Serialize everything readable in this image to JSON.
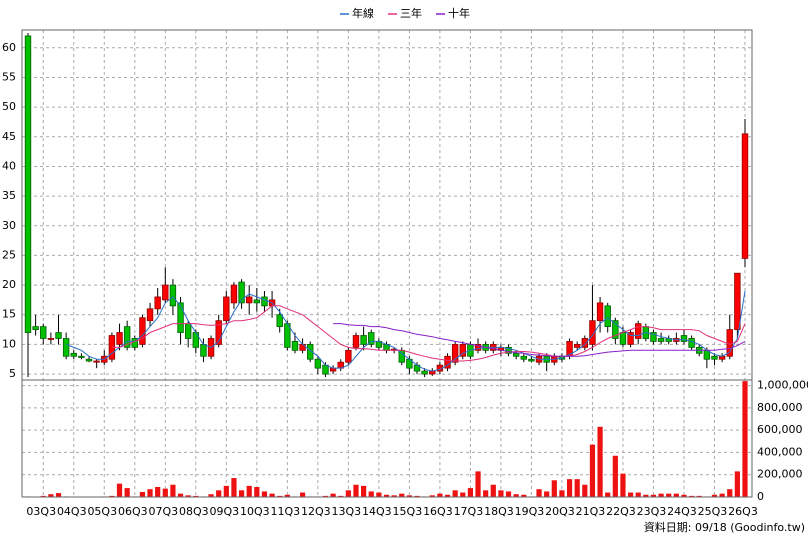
{
  "chart_data": {
    "type": "candlestick",
    "legend": "top",
    "grid": true,
    "up_color": "#ff0000",
    "down_color": "#00c000",
    "volume_color": "#ee1111",
    "note": "資料日期: 09/18 (Goodinfo.tw)",
    "categories": [
      null,
      null,
      "03Q3",
      null,
      null,
      null,
      "04Q3",
      null,
      null,
      null,
      "05Q3",
      null,
      null,
      null,
      "06Q3",
      null,
      null,
      null,
      "07Q3",
      null,
      null,
      null,
      "08Q3",
      null,
      null,
      null,
      "09Q3",
      null,
      null,
      null,
      "10Q3",
      null,
      null,
      null,
      "11Q3",
      null,
      null,
      null,
      "12Q3",
      null,
      null,
      null,
      "13Q3",
      null,
      null,
      null,
      "14Q3",
      null,
      null,
      null,
      "15Q3",
      null,
      null,
      null,
      "16Q3",
      null,
      null,
      null,
      "17Q3",
      null,
      null,
      null,
      "18Q3",
      null,
      null,
      null,
      "19Q3",
      null,
      null,
      null,
      "20Q3",
      null,
      null,
      null,
      "21Q3",
      null,
      null,
      null,
      "22Q3",
      null,
      null,
      null,
      "23Q3",
      null,
      null,
      null,
      "24Q3",
      null,
      null,
      null,
      "25Q3",
      null,
      null,
      null,
      "26Q3"
    ],
    "open": [
      62,
      13,
      13,
      11,
      12,
      11,
      8.5,
      8,
      7.5,
      7,
      7,
      7.5,
      10,
      13,
      11,
      10,
      14,
      16,
      17.5,
      20,
      17,
      13.5,
      12,
      10,
      8,
      10,
      14,
      17,
      20.5,
      17,
      17.5,
      18,
      16.5,
      15,
      13.5,
      10.5,
      9,
      10,
      7.5,
      6.5,
      5.5,
      6,
      7,
      9.5,
      11.5,
      12,
      10.5,
      10,
      9,
      9,
      7.5,
      6.5,
      5.5,
      5,
      5.5,
      6,
      7,
      8,
      10,
      9,
      10,
      9,
      9,
      9.5,
      8.5,
      8,
      7.5,
      7,
      8,
      7,
      8,
      8,
      9.5,
      9.5,
      10,
      14,
      16.5,
      14,
      12,
      10,
      11,
      13,
      12,
      11,
      11,
      10.5,
      11.5,
      11,
      9.5,
      9,
      8,
      7.5,
      8,
      12.5,
      24.5
    ],
    "high": [
      62.5,
      15,
      13.5,
      12,
      15,
      12,
      9,
      8.5,
      8,
      7.5,
      9,
      12,
      13.5,
      14,
      11.5,
      15,
      17,
      19.5,
      23,
      21,
      18,
      14,
      12.5,
      11,
      11.5,
      15,
      19,
      20.5,
      21,
      20,
      19.5,
      19,
      19,
      16,
      14,
      12,
      11,
      10.5,
      8,
      7,
      6.5,
      7.5,
      9.5,
      12,
      13,
      12.5,
      11,
      10.5,
      9.5,
      9.5,
      8,
      7,
      6,
      6,
      7,
      8.5,
      10.5,
      10.5,
      10.5,
      11,
      10.5,
      10.5,
      10,
      10,
      9,
      8.5,
      8,
      8.5,
      8.5,
      8.5,
      8.5,
      11,
      10.5,
      11.5,
      20,
      18,
      17,
      14.5,
      13,
      12.5,
      14,
      13.5,
      12.5,
      12,
      11.5,
      12,
      12.5,
      11.5,
      10,
      9.5,
      8.5,
      8.5,
      15,
      22,
      48
    ],
    "low": [
      4.5,
      11.5,
      10,
      10,
      10,
      7.5,
      7.5,
      7.5,
      7,
      6,
      6.5,
      7,
      9,
      9,
      9,
      9.5,
      13,
      15,
      17,
      15,
      10,
      9.5,
      8.5,
      7,
      7.5,
      9.5,
      13.5,
      16,
      16,
      15,
      15.5,
      15.5,
      14.5,
      12,
      9,
      8.5,
      8.5,
      7,
      5,
      4.5,
      5,
      5.5,
      6.5,
      9,
      9,
      9.5,
      9,
      8.5,
      8.5,
      6.5,
      5,
      5,
      4.5,
      4.7,
      5,
      5.5,
      6.5,
      7.5,
      7.5,
      8.5,
      8.5,
      8.5,
      8,
      8,
      7.5,
      7,
      7,
      6.5,
      5.5,
      6.5,
      7,
      7.5,
      9,
      9,
      9,
      12,
      12,
      10,
      9.5,
      9.5,
      10,
      10.5,
      10,
      10,
      10,
      10,
      10,
      9,
      8,
      6,
      6.5,
      7,
      7.5,
      11,
      23
    ],
    "close": [
      12,
      12.5,
      11,
      11,
      11,
      8,
      8,
      7.8,
      7.2,
      7.2,
      8,
      11.5,
      12,
      9.5,
      9.5,
      14.5,
      16,
      18,
      20,
      16.5,
      12,
      11,
      9.5,
      8,
      11,
      14,
      18,
      20,
      17,
      18,
      17,
      16.5,
      17.5,
      13,
      9.5,
      9,
      10,
      7.5,
      6,
      5,
      6,
      7,
      9,
      11.5,
      10,
      10,
      9.5,
      9,
      9.2,
      7,
      6,
      5.5,
      5,
      5.5,
      6.5,
      8,
      10,
      10,
      8,
      10,
      9,
      10,
      9.5,
      8.5,
      8,
      7.5,
      7.2,
      8,
      7,
      8,
      7.5,
      10.5,
      10,
      11,
      14,
      17,
      13,
      11,
      10,
      12,
      13.5,
      11,
      10.5,
      10.5,
      10.5,
      11,
      10.5,
      9.5,
      8.5,
      7.5,
      7.5,
      8,
      12.5,
      22,
      45.5
    ],
    "volume": [
      5000,
      3000,
      10000,
      25000,
      35000,
      5000,
      3000,
      3000,
      2000,
      3000,
      5000,
      10000,
      120000,
      80000,
      5000,
      45000,
      70000,
      90000,
      75000,
      110000,
      30000,
      15000,
      10000,
      5000,
      25000,
      60000,
      100000,
      170000,
      60000,
      100000,
      90000,
      50000,
      30000,
      10000,
      20000,
      5000,
      40000,
      5000,
      5000,
      10000,
      30000,
      10000,
      60000,
      110000,
      100000,
      50000,
      40000,
      20000,
      15000,
      30000,
      15000,
      10000,
      5000,
      15000,
      30000,
      20000,
      60000,
      40000,
      80000,
      230000,
      60000,
      110000,
      60000,
      50000,
      25000,
      20000,
      5000,
      70000,
      50000,
      150000,
      60000,
      160000,
      160000,
      110000,
      470000,
      630000,
      40000,
      370000,
      210000,
      40000,
      40000,
      20000,
      20000,
      30000,
      30000,
      30000,
      20000,
      10000,
      10000,
      5000,
      20000,
      30000,
      70000,
      230000,
      1040000
    ],
    "lines": [
      {
        "name": "年線",
        "color": "#2a6fc9",
        "values": [
          null,
          null,
          null,
          null,
          null,
          10,
          9.5,
          9,
          8,
          7.5,
          7.5,
          8.5,
          9.5,
          10.5,
          10.5,
          11.5,
          13,
          14.5,
          17,
          18,
          16.5,
          14,
          12,
          10,
          9.5,
          10.5,
          13,
          15.5,
          17.5,
          18.5,
          18,
          17.5,
          17,
          15.5,
          13.5,
          11.5,
          10,
          9,
          8,
          6.5,
          6,
          6,
          6.5,
          8,
          9.5,
          10.5,
          10.5,
          10,
          9.5,
          8.5,
          7.5,
          6.5,
          5.8,
          5.5,
          5.8,
          6.5,
          7.5,
          8.5,
          9,
          9.3,
          9.5,
          9.5,
          9.5,
          9.3,
          9,
          8.5,
          8,
          7.5,
          7.5,
          7.5,
          7.7,
          8.3,
          9,
          10,
          11.5,
          13.5,
          14.5,
          13.5,
          12.5,
          11.5,
          11.5,
          12,
          11.7,
          11.3,
          11,
          10.8,
          10.8,
          10.5,
          10,
          9,
          8.3,
          8,
          8.7,
          11,
          19
        ]
      },
      {
        "name": "三年",
        "color": "#e0307a",
        "values": [
          null,
          null,
          null,
          null,
          null,
          null,
          null,
          null,
          null,
          null,
          null,
          9.5,
          9.5,
          10,
          10.5,
          11,
          12,
          12.5,
          13,
          13.5,
          13.5,
          13.5,
          13.5,
          13.3,
          13.2,
          13.3,
          13.5,
          14,
          14,
          14.2,
          14.5,
          15.5,
          16.5,
          16.5,
          16,
          15.5,
          15,
          14,
          13,
          12,
          11,
          10,
          9.5,
          9.3,
          9.3,
          9.2,
          9,
          9,
          9,
          9,
          8.7,
          8.3,
          8,
          7.7,
          7.5,
          7.3,
          7.2,
          7.2,
          7.3,
          7.5,
          7.8,
          8.2,
          8.5,
          8.7,
          8.8,
          8.8,
          8.7,
          8.5,
          8.3,
          8,
          8,
          8,
          8.3,
          8.8,
          9.5,
          10.3,
          11,
          11.5,
          12,
          12.5,
          13,
          13,
          12.8,
          12.5,
          12.5,
          12.5,
          12.5,
          12.5,
          12.3,
          11.5,
          11,
          10.5,
          10,
          10.5,
          13.5
        ]
      },
      {
        "name": "十年",
        "color": "#8a1fc8",
        "values": [
          null,
          null,
          null,
          null,
          null,
          null,
          null,
          null,
          null,
          null,
          null,
          null,
          null,
          null,
          null,
          null,
          null,
          null,
          null,
          null,
          null,
          null,
          null,
          null,
          null,
          null,
          null,
          null,
          null,
          null,
          null,
          null,
          null,
          null,
          null,
          null,
          null,
          null,
          null,
          null,
          13.5,
          13.5,
          13.3,
          13.2,
          13.2,
          13,
          13,
          12.8,
          12.5,
          12.3,
          12,
          11.7,
          11.5,
          11.3,
          11,
          10.8,
          10.5,
          10.3,
          10,
          9.8,
          9.5,
          9.3,
          9,
          8.8,
          8.6,
          8.5,
          8.3,
          8.2,
          8.1,
          8,
          8,
          8,
          8,
          8.1,
          8.3,
          8.5,
          8.7,
          8.8,
          8.9,
          9,
          9,
          9,
          9,
          9,
          9,
          9,
          9,
          9,
          9,
          9,
          9,
          9.2,
          9.3,
          9.8,
          10.5
        ]
      }
    ],
    "ylim": [
      4,
      63
    ],
    "yticks": [
      5,
      10,
      15,
      20,
      25,
      30,
      35,
      40,
      45,
      50,
      55,
      60
    ],
    "volume_lim": [
      0,
      1050000
    ],
    "volume_ticks": [
      0,
      {
        "value": 200000,
        "label": "200,000"
      },
      {
        "value": 400000,
        "label": "400,000"
      },
      {
        "value": 600000,
        "label": "600,000"
      },
      {
        "value": 800000,
        "label": "800,000"
      },
      {
        "value": 1000000,
        "label": "1,000,000"
      }
    ]
  }
}
